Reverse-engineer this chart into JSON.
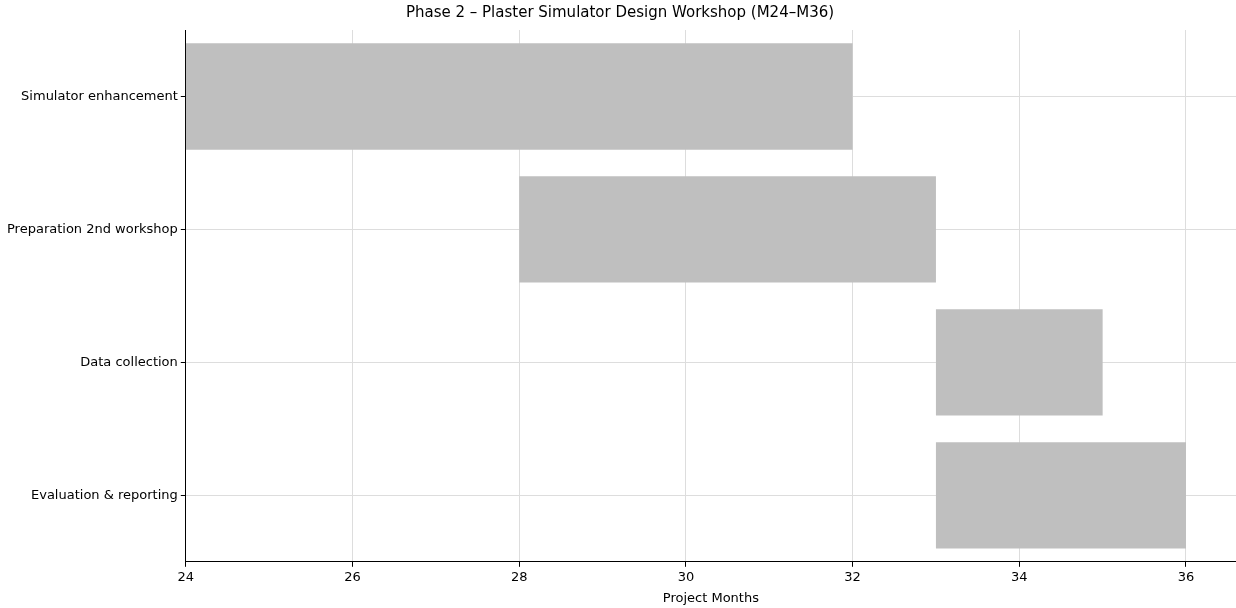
{
  "chart_data": {
    "type": "bar",
    "orientation": "horizontal",
    "title": "Phase 2 – Plaster Simulator Design Workshop (M24–M36)",
    "xlabel": "Project Months",
    "categories": [
      "Simulator enhancement",
      "Preparation 2nd workshop",
      "Data collection",
      "Evaluation & reporting"
    ],
    "base": [
      24,
      28,
      33,
      33
    ],
    "values": [
      8,
      5,
      2,
      3
    ],
    "color": "#bfbfbf",
    "xlim": [
      24,
      36.6
    ],
    "xticks": [
      24,
      26,
      28,
      30,
      32,
      34,
      36
    ],
    "grid": true
  }
}
